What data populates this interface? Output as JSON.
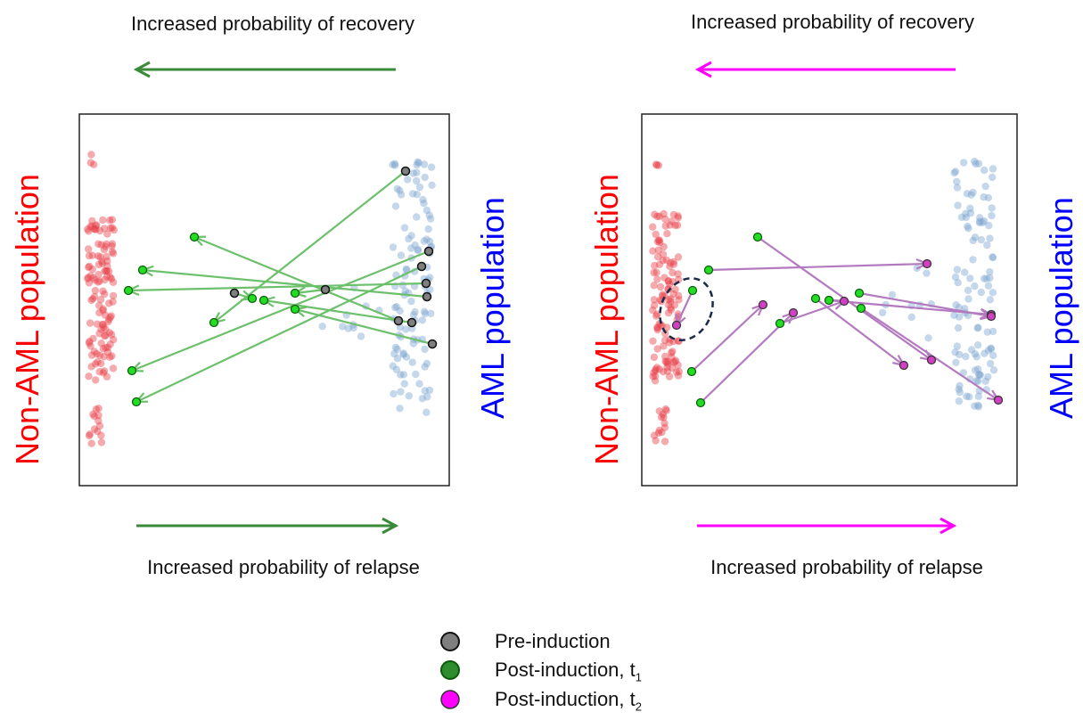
{
  "left_panel": {
    "top_caption": "Increased probability of recovery",
    "bottom_caption": "Increased probability of relapse",
    "left_axis_label": "Non-AML population",
    "right_axis_label": "AML population",
    "arrow_color": "#3a8a3a"
  },
  "right_panel": {
    "top_caption": "Increased probability of recovery",
    "bottom_caption": "Increased probability of relapse",
    "left_axis_label": "Non-AML population",
    "right_axis_label": "AML population",
    "arrow_color": "#ff00ff"
  },
  "colors": {
    "non_aml": "#e8434b",
    "aml": "#7fa7d0",
    "pre_induction": "#7f7f7f",
    "post_t1": "#22dd22",
    "post_t2": "#d040c0",
    "trajectory_left": "#6cc06c",
    "trajectory_right": "#b37ac0",
    "non_aml_label": "#ff0000",
    "aml_label": "#0000ff"
  },
  "legend": {
    "items": [
      {
        "label": "Pre-induction",
        "sub": "",
        "color": "#7f7f7f"
      },
      {
        "label": "Post-induction, t",
        "sub": "1",
        "color": "#2e8b2e"
      },
      {
        "label": "Post-induction, t",
        "sub": "2",
        "color": "#ff00ff"
      }
    ]
  }
}
